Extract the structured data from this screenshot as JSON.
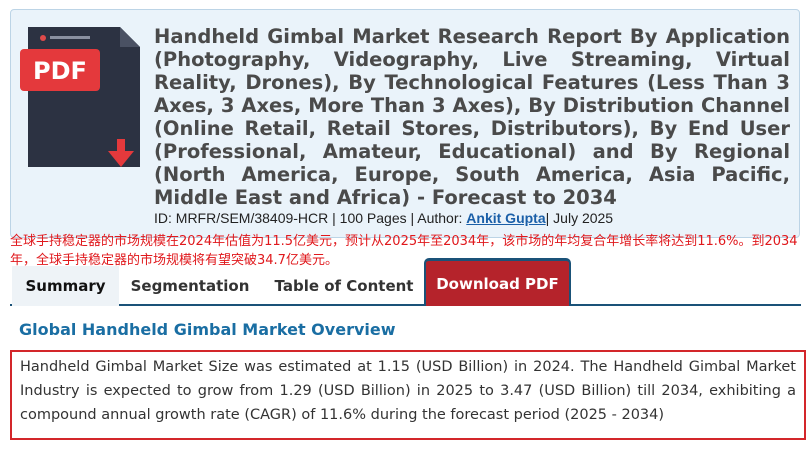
{
  "report": {
    "title": "Handheld Gimbal Market Research Report By Application (Photography, Videography, Live Streaming, Virtual Reality, Drones), By Technological Features (Less Than 3 Axes, 3 Axes, More Than 3 Axes), By Distribution Channel (Online Retail, Retail Stores, Distributors), By End User (Professional, Amateur, Educational) and By Regional (North America, Europe, South America, Asia Pacific, Middle East and Africa) - Forecast to 2034",
    "meta_prefix": "ID: MRFR/SEM/38409-HCR | 100 Pages | Author: ",
    "author": "Ankit Gupta",
    "date": "| July 2025",
    "pdf_label": "PDF",
    "icon": "pdf-document-download-icon"
  },
  "annotation": "全球手持稳定器的市场规模在2024年估值为11.5亿美元，预计从2025年至2034年，该市场的年均复合年增长率将达到11.6%。到2034年，全球手持稳定器的市场规模将有望突破34.7亿美元。",
  "tabs": {
    "summary": "Summary",
    "segmentation": "Segmentation",
    "toc": "Table of Content",
    "download": "Download PDF"
  },
  "overview": {
    "title": "Global Handheld Gimbal Market Overview",
    "text": "Handheld Gimbal Market Size was estimated at 1.15 (USD Billion) in 2024. The Handheld Gimbal Market Industry is expected to grow from 1.29 (USD Billion) in 2025 to 3.47 (USD Billion) till 2034, exhibiting a compound annual growth rate (CAGR) of 11.6% during the forecast period (2025 - 2034)"
  },
  "colors": {
    "accent_blue": "#1a6ea3",
    "download_red": "#b5232b",
    "annotation_red": "#e0181c",
    "card_bg": "#eaf3fa"
  }
}
